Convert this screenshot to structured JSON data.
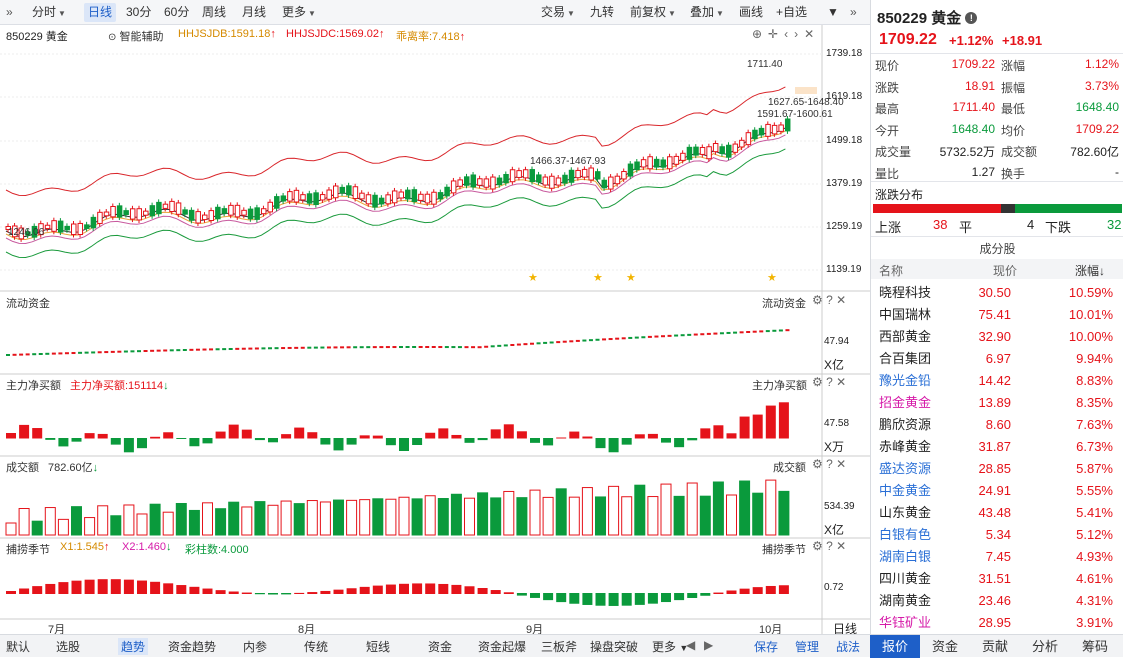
{
  "toolbar": {
    "items": [
      "分时",
      "日线",
      "30分",
      "60分",
      "周线",
      "月线",
      "更多"
    ],
    "right_items": [
      "交易",
      "九转",
      "前复权",
      "叠加",
      "画线",
      "+自选"
    ]
  },
  "chart": {
    "title": "850229 黄金",
    "assist": "智能辅助",
    "hhjsjdb": "HHJSJDB:1591.18",
    "hhjsjdc": "HHJSJDC:1569.02",
    "bias": "乖离率:7.418",
    "yticks": [
      "1739.18",
      "1619.18",
      "1499.18",
      "1379.19",
      "1259.19",
      "1139.19"
    ],
    "annot_high": "1711.40",
    "annot_1": "1627.65-1648.40",
    "annot_2": "1591.67-1600.61",
    "annot_3": "1466.37-1467.93",
    "annot_low": "1246.06",
    "xticks": [
      "7月",
      "8月",
      "9月",
      "10月"
    ]
  },
  "panels": {
    "flow": {
      "title": "流动资金",
      "tag": "流动资金",
      "value": "47.94",
      "unit": "X亿"
    },
    "main_net": {
      "title": "主力净买额",
      "stat": "主力净买额:151114",
      "tag": "主力净买额",
      "value": "47.58",
      "unit": "X万"
    },
    "volume": {
      "title": "成交额",
      "stat": "782.60亿",
      "tag": "成交额",
      "value": "534.39",
      "unit": "X亿"
    },
    "season": {
      "title": "捕捞季节",
      "x1": "X1:1.545",
      "x2": "X2:1.460",
      "bars": "彩柱数:4.000",
      "tag": "捕捞季节",
      "value": "0.72",
      "period": "日线"
    }
  },
  "bottom": {
    "items": [
      "默认",
      "选股",
      "趋势",
      "资金趋势",
      "内参",
      "传统",
      "短线",
      "资金",
      "资金起爆",
      "三板斧",
      "操盘突破",
      "更多"
    ],
    "save": "保存",
    "manage": "管理",
    "battle": "战法"
  },
  "quote": {
    "code": "850229",
    "name": "黄金",
    "price": "1709.22",
    "pct": "+1.12%",
    "chg": "+18.91",
    "rows": [
      [
        "现价",
        "1709.22",
        "涨幅",
        "1.12%"
      ],
      [
        "涨跌",
        "18.91",
        "振幅",
        "3.73%"
      ],
      [
        "最高",
        "1711.40",
        "最低",
        "1648.40"
      ],
      [
        "今开",
        "1648.40",
        "均价",
        "1709.22"
      ],
      [
        "成交量",
        "5732.52万",
        "成交额",
        "782.60亿"
      ],
      [
        "量比",
        "1.27",
        "换手",
        "-"
      ]
    ],
    "dist_title": "涨跌分布",
    "up_label": "上涨",
    "up": "38",
    "flat_label": "平",
    "flat": "4",
    "down_label": "下跌",
    "down": "32",
    "comp_title": "成分股",
    "col_name": "名称",
    "col_price": "现价",
    "col_pct": "涨幅↓",
    "stocks": [
      [
        "晓程科技",
        "30.50",
        "10.59%"
      ],
      [
        "中国瑞林",
        "75.41",
        "10.01%"
      ],
      [
        "西部黄金",
        "32.90",
        "10.00%"
      ],
      [
        "合百集团",
        "6.97",
        "9.94%"
      ],
      [
        "豫光金铅",
        "14.42",
        "8.83%"
      ],
      [
        "招金黄金",
        "13.89",
        "8.35%"
      ],
      [
        "鹏欣资源",
        "8.60",
        "7.63%"
      ],
      [
        "赤峰黄金",
        "31.87",
        "6.73%"
      ],
      [
        "盛达资源",
        "28.85",
        "5.87%"
      ],
      [
        "中金黄金",
        "24.91",
        "5.55%"
      ],
      [
        "山东黄金",
        "43.48",
        "5.41%"
      ],
      [
        "白银有色",
        "5.34",
        "5.12%"
      ],
      [
        "湖南白银",
        "7.45",
        "4.93%"
      ],
      [
        "四川黄金",
        "31.51",
        "4.61%"
      ],
      [
        "湖南黄金",
        "23.46",
        "4.31%"
      ],
      [
        "华钰矿业",
        "28.95",
        "3.91%"
      ]
    ],
    "name_colors": [
      "#222",
      "#222",
      "#222",
      "#222",
      "#2a6fd6",
      "#d61aa8",
      "#222",
      "#222",
      "#2a6fd6",
      "#2a6fd6",
      "#222",
      "#2a6fd6",
      "#2a6fd6",
      "#222",
      "#222",
      "#d61aa8"
    ],
    "tabs": [
      "报价",
      "资金",
      "贡献",
      "分析",
      "筹码"
    ]
  },
  "colors": {
    "up": "#e5131a",
    "down": "#0a9a3c",
    "accent": "#1e5fc8"
  }
}
